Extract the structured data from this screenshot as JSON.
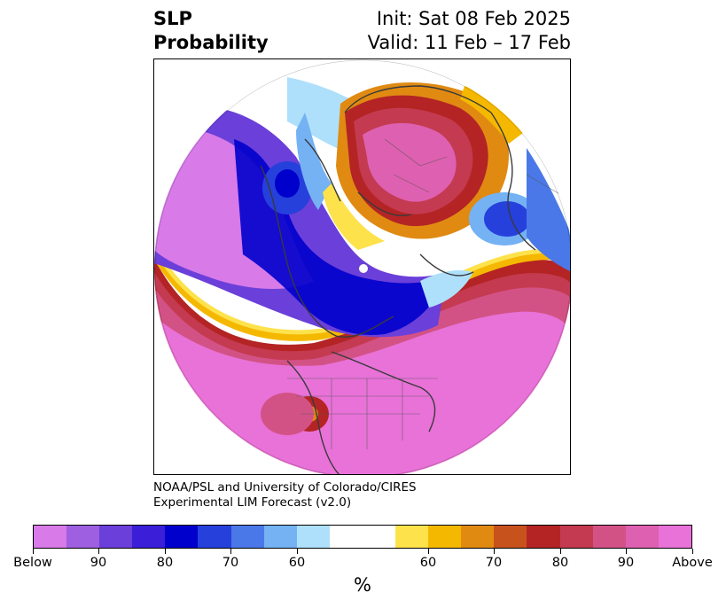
{
  "title": {
    "left_line1": "SLP",
    "left_line2": "Probability",
    "right_line1": "Init: Sat 08 Feb 2025",
    "right_line2": "Valid: 11 Feb – 17 Feb"
  },
  "credit": {
    "line1": "NOAA/PSL and University of Colorado/CIRES",
    "line2": "Experimental LIM Forecast (v2.0)"
  },
  "colorbar": {
    "colors": [
      "#d87ae8",
      "#9e5fe0",
      "#6b3fd9",
      "#3a1ed8",
      "#0000cc",
      "#2640dc",
      "#4a78e8",
      "#74b2f4",
      "#aee0fb",
      "#ffffff",
      "#ffffff",
      "#fde24c",
      "#f5b800",
      "#e08a12",
      "#c8521c",
      "#b42424",
      "#c43a50",
      "#d35286",
      "#de60b0",
      "#e872d8"
    ],
    "labels": [
      "Below",
      "90",
      "80",
      "70",
      "60",
      "60",
      "70",
      "80",
      "90",
      "Above"
    ],
    "unit": "%"
  },
  "map": {
    "colors": {
      "above_high": "#e872d8",
      "above_mid": "#d35286",
      "above_red": "#b42424",
      "above_orange": "#e08a12",
      "above_yellow": "#f5b800",
      "below_high": "#d87ae8",
      "below_mid": "#6b3fd9",
      "below_blue": "#0000cc",
      "below_light": "#74b2f4",
      "coast": "#3a3a3a"
    }
  }
}
